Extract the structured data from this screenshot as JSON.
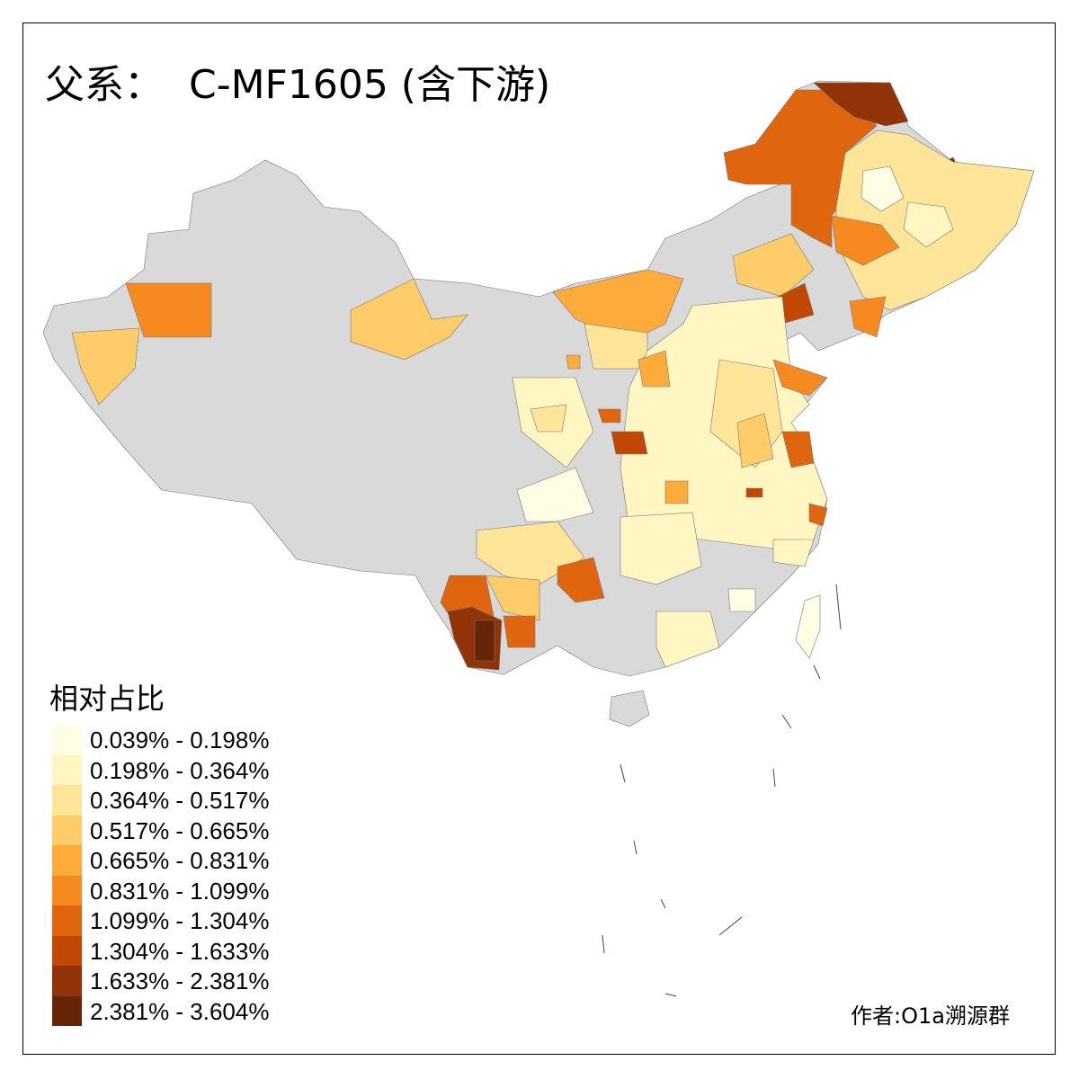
{
  "title": "父系：  C-MF1605 (含下游)",
  "legend": {
    "title": "相对占比",
    "items": [
      {
        "label": "0.039% - 0.198%",
        "color": "#fffde4"
      },
      {
        "label": "0.198% - 0.364%",
        "color": "#fff6c1"
      },
      {
        "label": "0.364% - 0.517%",
        "color": "#fee599"
      },
      {
        "label": "0.517% - 0.665%",
        "color": "#fecc68"
      },
      {
        "label": "0.665% - 0.831%",
        "color": "#fdab3b"
      },
      {
        "label": "0.831% - 1.099%",
        "color": "#f58a20"
      },
      {
        "label": "1.099% - 1.304%",
        "color": "#e0650f"
      },
      {
        "label": "1.304% - 1.633%",
        "color": "#c04804"
      },
      {
        "label": "1.633% - 2.381%",
        "color": "#913207"
      },
      {
        "label": "2.381% - 3.604%",
        "color": "#672507"
      }
    ]
  },
  "no_data_color": "#d9d9d9",
  "credit": "作者:O1a溯源群"
}
